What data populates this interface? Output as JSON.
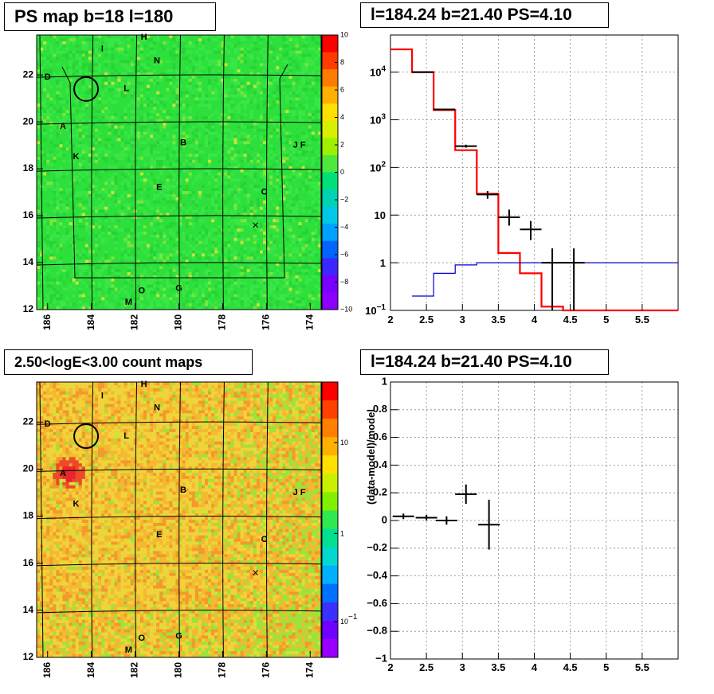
{
  "panels": {
    "ps_map": {
      "title": "PS map b=18 l=180"
    },
    "spectrum": {
      "title": "l=184.24 b=21.40 PS=4.10"
    },
    "count_map": {
      "title": "2.50<logE<3.00 count maps"
    },
    "residual": {
      "title": "l=184.24 b=21.40 PS=4.10"
    }
  },
  "colors": {
    "data": "#000000",
    "model": "#ff0000",
    "model_secondary": "#0000cc",
    "grid": "#888888",
    "psmap_background": "#2de03c",
    "countmap_background": "#f2d23a",
    "countmap_hotspot": "#e8252a"
  },
  "chart_data": [
    {
      "type": "heatmap",
      "name": "ps_map",
      "title": "PS map b=18 l=180",
      "x_ticks": [
        "186",
        "184",
        "182",
        "180",
        "178",
        "176",
        "174"
      ],
      "xlim": [
        186.5,
        173.5
      ],
      "y_ticks": [
        "12",
        "14",
        "16",
        "18",
        "20",
        "22"
      ],
      "ylim": [
        12,
        23.7
      ],
      "colorbar": {
        "scale": "linear",
        "min": -10,
        "max": 10,
        "ticks": [
          "10",
          "8",
          "6",
          "4",
          "2",
          "0",
          "−2",
          "−4",
          "−6",
          "−8",
          "−10"
        ]
      },
      "labels": [
        {
          "text": "H",
          "l": 181.6,
          "b": 23.6
        },
        {
          "text": "I",
          "l": 183.5,
          "b": 23.1
        },
        {
          "text": "N",
          "l": 181.0,
          "b": 22.6
        },
        {
          "text": "D",
          "l": 186.0,
          "b": 21.9
        },
        {
          "text": "L",
          "l": 182.4,
          "b": 21.4
        },
        {
          "text": "A",
          "l": 185.3,
          "b": 19.8
        },
        {
          "text": "B",
          "l": 179.8,
          "b": 19.1
        },
        {
          "text": "J F",
          "l": 174.5,
          "b": 19.0
        },
        {
          "text": "K",
          "l": 184.7,
          "b": 18.5
        },
        {
          "text": "E",
          "l": 180.9,
          "b": 17.2
        },
        {
          "text": "C",
          "l": 176.1,
          "b": 17.0
        },
        {
          "text": "O",
          "l": 181.7,
          "b": 12.8
        },
        {
          "text": "G",
          "l": 180.0,
          "b": 12.9
        },
        {
          "text": "M",
          "l": 182.3,
          "b": 12.3
        }
      ],
      "circle": {
        "l": 184.24,
        "b": 21.4
      },
      "cross": {
        "l": 176.5,
        "b": 15.6
      }
    },
    {
      "type": "line",
      "name": "spectrum",
      "title": "l=184.24 b=21.40 PS=4.10",
      "xlim": [
        2,
        6
      ],
      "x_ticks": [
        "2",
        "2.5",
        "3",
        "3.5",
        "4",
        "4.5",
        "5",
        "5.5"
      ],
      "yscale": "log",
      "ylim": [
        0.1,
        60000
      ],
      "y_ticks": [
        "10^-1",
        "1",
        "10",
        "10^2",
        "10^3",
        "10^4"
      ],
      "grid": true,
      "series": [
        {
          "kind": "step",
          "color": "#ff0000",
          "x_edges": [
            2.0,
            2.3,
            2.6,
            2.9,
            3.2,
            3.5,
            3.8,
            4.1,
            4.4,
            6.0
          ],
          "values": [
            30000,
            10000,
            1600,
            230,
            28,
            1.6,
            0.6,
            0.12,
            0.08
          ]
        },
        {
          "kind": "step",
          "color": "#0000cc",
          "x_edges": [
            2.3,
            2.6,
            2.9,
            3.2,
            3.5,
            6.0
          ],
          "values": [
            0.2,
            0.6,
            0.9,
            1.0,
            1.0
          ]
        },
        {
          "kind": "errorbar",
          "color": "#000000",
          "points": [
            {
              "x": 2.45,
              "xerr": 0.15,
              "y": 10000,
              "ylo": 9800,
              "yhi": 10200
            },
            {
              "x": 2.75,
              "xerr": 0.15,
              "y": 1650,
              "ylo": 1600,
              "yhi": 1700
            },
            {
              "x": 3.05,
              "xerr": 0.15,
              "y": 280,
              "ylo": 260,
              "yhi": 300
            },
            {
              "x": 3.35,
              "xerr": 0.15,
              "y": 27,
              "ylo": 22,
              "yhi": 32
            },
            {
              "x": 3.65,
              "xerr": 0.15,
              "y": 9,
              "ylo": 6,
              "yhi": 13
            },
            {
              "x": 3.95,
              "xerr": 0.15,
              "y": 5,
              "ylo": 3,
              "yhi": 7.5
            },
            {
              "x": 4.25,
              "xerr": 0.15,
              "y": 1,
              "ylo": 0.1,
              "yhi": 2
            },
            {
              "x": 4.55,
              "xerr": 0.15,
              "y": 1,
              "ylo": 0.1,
              "yhi": 2
            }
          ]
        }
      ]
    },
    {
      "type": "heatmap",
      "name": "count_map",
      "title": "2.50<logE<3.00 count maps",
      "x_ticks": [
        "186",
        "184",
        "182",
        "180",
        "178",
        "176",
        "174"
      ],
      "xlim": [
        186.5,
        173.5
      ],
      "y_ticks": [
        "12",
        "14",
        "16",
        "18",
        "20",
        "22"
      ],
      "ylim": [
        12,
        23.7
      ],
      "colorbar": {
        "scale": "log",
        "ticks": [
          "10",
          "1",
          "10^-1"
        ]
      },
      "labels": [
        {
          "text": "H",
          "l": 181.6,
          "b": 23.6
        },
        {
          "text": "I",
          "l": 183.5,
          "b": 23.1
        },
        {
          "text": "N",
          "l": 181.0,
          "b": 22.6
        },
        {
          "text": "D",
          "l": 186.0,
          "b": 21.9
        },
        {
          "text": "L",
          "l": 182.4,
          "b": 21.4
        },
        {
          "text": "A",
          "l": 185.3,
          "b": 19.8
        },
        {
          "text": "B",
          "l": 179.8,
          "b": 19.1
        },
        {
          "text": "J F",
          "l": 174.5,
          "b": 19.0
        },
        {
          "text": "K",
          "l": 184.7,
          "b": 18.5
        },
        {
          "text": "E",
          "l": 180.9,
          "b": 17.2
        },
        {
          "text": "C",
          "l": 176.1,
          "b": 17.0
        },
        {
          "text": "O",
          "l": 181.7,
          "b": 12.8
        },
        {
          "text": "G",
          "l": 180.0,
          "b": 12.9
        },
        {
          "text": "M",
          "l": 182.3,
          "b": 12.3
        }
      ],
      "circle": {
        "l": 184.24,
        "b": 21.4
      },
      "cross": {
        "l": 176.5,
        "b": 15.6
      }
    },
    {
      "type": "scatter",
      "name": "residual",
      "title": "l=184.24 b=21.40 PS=4.10",
      "xlim": [
        2,
        6
      ],
      "x_ticks": [
        "2",
        "2.5",
        "3",
        "3.5",
        "4",
        "4.5",
        "5",
        "5.5"
      ],
      "ylim": [
        -1,
        1
      ],
      "y_ticks": [
        "1",
        "0.8",
        "0.6",
        "0.4",
        "0.2",
        "0",
        "−0.2",
        "−0.4",
        "−0.6",
        "−0.8",
        "−1"
      ],
      "ylabel": "(data-model)/model",
      "grid": true,
      "points": [
        {
          "x": 2.18,
          "xerr": 0.15,
          "y": 0.03,
          "yerr": 0.02
        },
        {
          "x": 2.5,
          "xerr": 0.15,
          "y": 0.02,
          "yerr": 0.02
        },
        {
          "x": 2.78,
          "xerr": 0.15,
          "y": 0.0,
          "yerr": 0.03
        },
        {
          "x": 3.05,
          "xerr": 0.15,
          "y": 0.19,
          "yerr": 0.07
        },
        {
          "x": 3.37,
          "xerr": 0.15,
          "y": -0.03,
          "yerr": 0.18
        }
      ]
    }
  ]
}
